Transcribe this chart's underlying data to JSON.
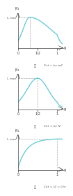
{
  "background_color": "#ffffff",
  "line_color": "#5bc8d4",
  "dashed_color": "#aaaaaa",
  "panels": [
    {
      "type": "bell_asymmetric",
      "peak_s": 0.3,
      "ylabel": "I/I2",
      "ylabel2": "I2 max",
      "xlabel": "g",
      "xticks": [
        0,
        0.5,
        1
      ],
      "xtick_labels": [
        "0",
        "1/2",
        "1"
      ],
      "caption_a": "a",
      "caption_b": "Cet = ke w2",
      "xlim": [
        0,
        1.15
      ],
      "ylim": [
        0,
        1.15
      ]
    },
    {
      "type": "bell_symmetric",
      "peak_s": 0.5,
      "ylabel": "I/I2",
      "ylabel2": "I2 max",
      "xlabel": "g",
      "xticks": [
        0,
        0.5,
        1
      ],
      "xtick_labels": [
        "0",
        "1/2",
        "1"
      ],
      "caption_a": "b",
      "caption_b": "Cet = ke N",
      "xlim": [
        0,
        1.15
      ],
      "ylim": [
        0,
        1.15
      ]
    },
    {
      "type": "saturation",
      "peak_s": 1.0,
      "ylabel": "I/I2",
      "ylabel2": "I2 max",
      "xlabel": "g",
      "xticks": [
        0,
        1
      ],
      "xtick_labels": [
        "0",
        "1"
      ],
      "caption_a": "c",
      "caption_b": "Cet = I2 = Cte",
      "xlim": [
        0,
        1.15
      ],
      "ylim": [
        0,
        1.15
      ]
    }
  ]
}
